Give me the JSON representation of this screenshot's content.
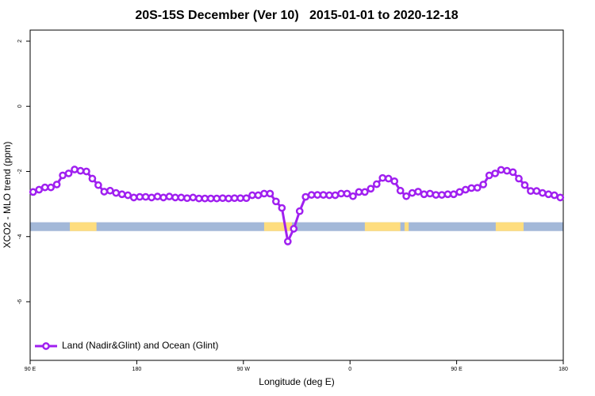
{
  "chart_data": {
    "type": "line",
    "title": "20S-15S December (Ver 10)   2015-01-01 to 2020-12-18",
    "xlabel": "Longitude (deg E)",
    "ylabel": "XCO2 - MLO trend (ppm)",
    "xlim": [
      90,
      540
    ],
    "ylim": [
      -7.8,
      2.34
    ],
    "xticks": [
      {
        "value": 90,
        "label": "90 E"
      },
      {
        "value": 180,
        "label": "180"
      },
      {
        "value": 270,
        "label": "90 W"
      },
      {
        "value": 360,
        "label": "0"
      },
      {
        "value": 450,
        "label": "90 E"
      },
      {
        "value": 540,
        "label": "180"
      }
    ],
    "yticks": [
      2,
      0,
      -2,
      -4,
      -6
    ],
    "legend": "bottom-left",
    "x": [
      92.5,
      97.5,
      102.5,
      107.5,
      112.5,
      117.5,
      122.5,
      127.5,
      132.5,
      137.5,
      142.5,
      147.5,
      152.5,
      157.5,
      162.5,
      167.5,
      172.5,
      177.5,
      182.5,
      187.5,
      192.5,
      197.5,
      202.5,
      207.5,
      212.5,
      217.5,
      222.5,
      227.5,
      232.5,
      237.5,
      242.5,
      247.5,
      252.5,
      257.5,
      262.5,
      267.5,
      272.5,
      277.5,
      282.5,
      287.5,
      292.5,
      297.5,
      302.5,
      307.5,
      312.5,
      317.5,
      322.5,
      327.5,
      332.5,
      337.5,
      342.5,
      347.5,
      352.5,
      357.5,
      362.5,
      367.5,
      372.5,
      377.5,
      382.5,
      387.5,
      392.5,
      397.5,
      402.5,
      407.5,
      412.5,
      417.5,
      422.5,
      427.5,
      432.5,
      437.5,
      442.5,
      447.5,
      452.5,
      457.5,
      462.5,
      467.5,
      472.5,
      477.5,
      482.5,
      487.5,
      492.5,
      497.5,
      502.5,
      507.5,
      512.5,
      517.5,
      522.5,
      527.5,
      532.5,
      537.5
    ],
    "series": [
      {
        "name": "Land (Nadir&Glint) and Ocean (Glint)",
        "color": "#a020f0",
        "values": [
          -2.63,
          -2.56,
          -2.49,
          -2.49,
          -2.4,
          -2.12,
          -2.06,
          -1.94,
          -1.98,
          -2.0,
          -2.22,
          -2.42,
          -2.62,
          -2.59,
          -2.66,
          -2.7,
          -2.73,
          -2.8,
          -2.78,
          -2.78,
          -2.8,
          -2.77,
          -2.8,
          -2.77,
          -2.8,
          -2.8,
          -2.82,
          -2.8,
          -2.83,
          -2.83,
          -2.83,
          -2.83,
          -2.82,
          -2.83,
          -2.82,
          -2.82,
          -2.82,
          -2.73,
          -2.73,
          -2.68,
          -2.68,
          -2.92,
          -3.12,
          -4.15,
          -3.76,
          -3.22,
          -2.78,
          -2.72,
          -2.72,
          -2.72,
          -2.73,
          -2.73,
          -2.68,
          -2.68,
          -2.76,
          -2.63,
          -2.63,
          -2.53,
          -2.39,
          -2.2,
          -2.22,
          -2.3,
          -2.59,
          -2.76,
          -2.66,
          -2.62,
          -2.7,
          -2.68,
          -2.72,
          -2.72,
          -2.7,
          -2.7,
          -2.63,
          -2.56,
          -2.51,
          -2.5,
          -2.4,
          -2.12,
          -2.06,
          -1.95,
          -1.98,
          -2.02,
          -2.22,
          -2.42,
          -2.6,
          -2.6,
          -2.66,
          -2.7,
          -2.73,
          -2.8
        ]
      }
    ],
    "strip": {
      "y": [
        -3.83,
        -3.56
      ],
      "color": "#a3b8d8",
      "land_color": "#fedd7e",
      "land": [
        [
          123.5,
          146
        ],
        [
          287.5,
          311
        ],
        [
          372.5,
          402.5
        ],
        [
          406,
          409.5
        ],
        [
          483,
          506.5
        ]
      ]
    }
  }
}
